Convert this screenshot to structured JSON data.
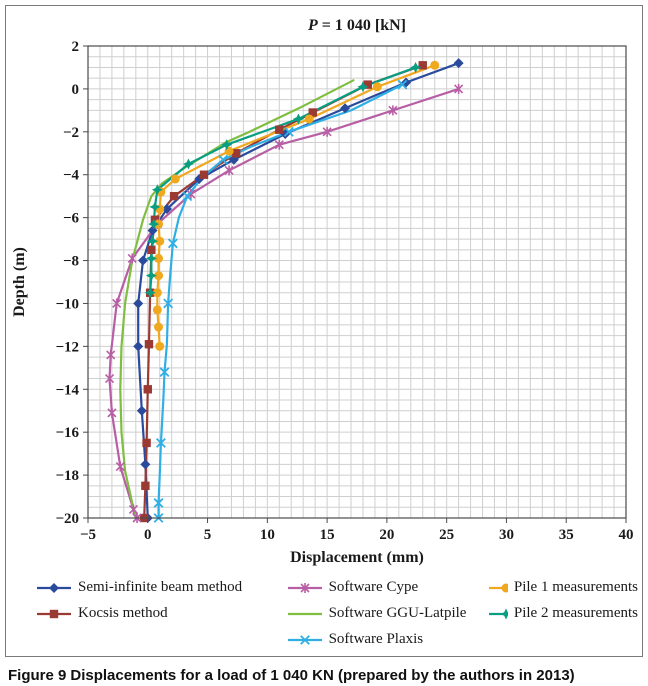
{
  "figure": {
    "caption_label": "Figure 9",
    "caption_text": "Displacements for a load of 1 040 KN (prepared by the authors in 2013)"
  },
  "chart_data": {
    "type": "line",
    "title": "P = 1 040 [kN]",
    "title_var": "P",
    "title_rest": " = 1 040 [kN]",
    "xlabel": "Displacement (mm)",
    "ylabel": "Depth (m)",
    "xlim": [
      -5,
      40
    ],
    "ylim": [
      -20,
      2
    ],
    "xticks": [
      -5,
      0,
      5,
      10,
      15,
      20,
      25,
      30,
      35,
      40
    ],
    "yticks": [
      2,
      0,
      -2,
      -4,
      -6,
      -8,
      -10,
      -12,
      -14,
      -16,
      -18,
      -20
    ],
    "x_minor_step": 1,
    "y_minor_step": 0.5,
    "grid": true,
    "legend_position": "bottom",
    "grid_color": "#cfcfcf",
    "border_color": "#4a4a4a",
    "series": [
      {
        "name": "Semi-infinite beam method",
        "color": "#2A4B9C",
        "marker": "diamond",
        "marker_every": 1,
        "points": [
          [
            26,
            1.2
          ],
          [
            21.6,
            0.3
          ],
          [
            16.5,
            -0.9
          ],
          [
            11.5,
            -2.1
          ],
          [
            7.2,
            -3.3
          ],
          [
            4.3,
            -4.2
          ],
          [
            1.6,
            -5.6
          ],
          [
            0.4,
            -6.6
          ],
          [
            -0.4,
            -8
          ],
          [
            -0.8,
            -10
          ],
          [
            -0.8,
            -12
          ],
          [
            -0.5,
            -15
          ],
          [
            -0.2,
            -17.5
          ],
          [
            0,
            -20
          ]
        ]
      },
      {
        "name": "Kocsis method",
        "color": "#9A3A33",
        "marker": "square",
        "marker_every": 1,
        "points": [
          [
            23,
            1.1
          ],
          [
            18.4,
            0.2
          ],
          [
            13.8,
            -1.1
          ],
          [
            11,
            -1.9
          ],
          [
            7.4,
            -3
          ],
          [
            4.7,
            -4
          ],
          [
            2.2,
            -5
          ],
          [
            0.6,
            -6.1
          ],
          [
            0.3,
            -7.5
          ],
          [
            0.2,
            -9.5
          ],
          [
            0.1,
            -11.9
          ],
          [
            0,
            -14
          ],
          [
            -0.1,
            -16.5
          ],
          [
            -0.2,
            -18.5
          ],
          [
            -0.3,
            -20
          ]
        ]
      },
      {
        "name": "Software Cype",
        "color": "#B85EA5",
        "marker": "asterisk",
        "marker_every": 1,
        "points": [
          [
            26,
            0
          ],
          [
            20.5,
            -1
          ],
          [
            15,
            -2
          ],
          [
            11,
            -2.6
          ],
          [
            6.8,
            -3.8
          ],
          [
            3.6,
            -4.9
          ],
          [
            0.8,
            -6.3
          ],
          [
            -1.3,
            -7.9
          ],
          [
            -2.6,
            -10
          ],
          [
            -3.1,
            -12.4
          ],
          [
            -3.2,
            -13.5
          ],
          [
            -3,
            -15.1
          ],
          [
            -2.3,
            -17.6
          ],
          [
            -1.2,
            -19.6
          ],
          [
            -0.9,
            -20
          ]
        ]
      },
      {
        "name": "Software GGU-Latpile",
        "color": "#7FBE41",
        "marker": "none",
        "marker_every": 1,
        "points": [
          [
            17.2,
            0.4
          ],
          [
            13,
            -0.8
          ],
          [
            8.5,
            -2
          ],
          [
            6.5,
            -2.5
          ],
          [
            3.3,
            -3.6
          ],
          [
            1.2,
            -4.4
          ],
          [
            0.3,
            -5
          ],
          [
            -0.4,
            -6.1
          ],
          [
            -1.3,
            -8
          ],
          [
            -1.9,
            -10
          ],
          [
            -2.2,
            -12
          ],
          [
            -2.3,
            -14
          ],
          [
            -2.2,
            -16
          ],
          [
            -1.9,
            -17.8
          ],
          [
            -1.3,
            -19.3
          ],
          [
            -1,
            -20
          ]
        ]
      },
      {
        "name": "Software Plaxis",
        "color": "#30AFE5",
        "marker": "x",
        "marker_every": 2,
        "points": [
          [
            21.3,
            0.2
          ],
          [
            17,
            -1
          ],
          [
            11.8,
            -2
          ],
          [
            8.6,
            -2.7
          ],
          [
            6.3,
            -3.3
          ],
          [
            4.6,
            -4.1
          ],
          [
            3.3,
            -5
          ],
          [
            2.6,
            -6
          ],
          [
            2.1,
            -7.2
          ],
          [
            1.9,
            -8.5
          ],
          [
            1.7,
            -10
          ],
          [
            1.6,
            -11.9
          ],
          [
            1.4,
            -13.2
          ],
          [
            1.3,
            -14.5
          ],
          [
            1.1,
            -16.5
          ],
          [
            1,
            -18
          ],
          [
            0.9,
            -19.3
          ],
          [
            0.9,
            -20
          ]
        ]
      },
      {
        "name": "Pile 1 measurements",
        "color": "#F0A81F",
        "marker": "circle",
        "marker_every": 1,
        "points": [
          [
            24,
            1.1
          ],
          [
            19.2,
            0.1
          ],
          [
            13.5,
            -1.4
          ],
          [
            6.8,
            -2.9
          ],
          [
            2.3,
            -4.2
          ],
          [
            1.1,
            -4.8
          ],
          [
            1,
            -5.6
          ],
          [
            0.9,
            -6.3
          ],
          [
            1,
            -7.1
          ],
          [
            0.9,
            -7.9
          ],
          [
            0.9,
            -8.7
          ],
          [
            0.8,
            -9.5
          ],
          [
            0.8,
            -10.3
          ],
          [
            0.9,
            -11.1
          ],
          [
            1,
            -12
          ]
        ]
      },
      {
        "name": "Pile 2 measurements",
        "color": "#089E82",
        "marker": "star4",
        "marker_every": 1,
        "points": [
          [
            22.4,
            1
          ],
          [
            18,
            0.1
          ],
          [
            12.6,
            -1.4
          ],
          [
            6.6,
            -2.6
          ],
          [
            3.4,
            -3.5
          ],
          [
            0.8,
            -4.7
          ],
          [
            0.6,
            -5.5
          ],
          [
            0.5,
            -6.3
          ],
          [
            0.4,
            -7.1
          ],
          [
            0.3,
            -7.9
          ],
          [
            0.3,
            -8.7
          ],
          [
            0.2,
            -9.5
          ]
        ]
      }
    ],
    "legend_columns": [
      [
        0,
        1
      ],
      [
        2,
        3,
        4
      ],
      [
        5,
        6
      ]
    ]
  }
}
